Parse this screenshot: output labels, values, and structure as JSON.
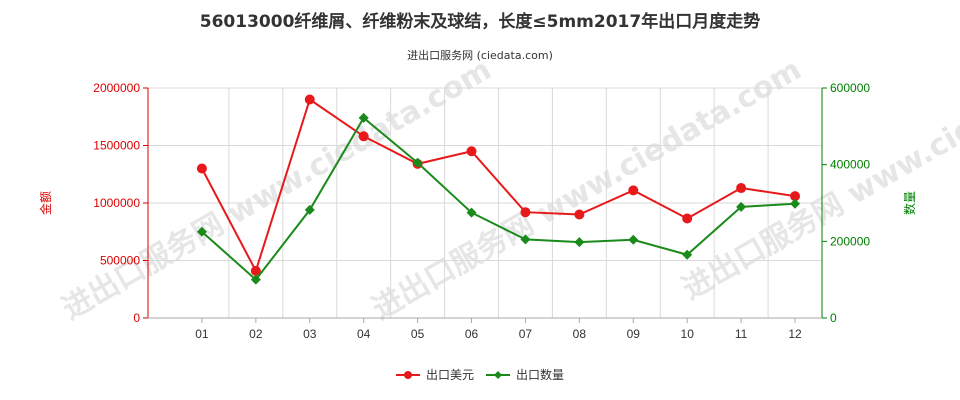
{
  "chart_data": {
    "type": "line",
    "title": "56013000纤维屑、纤维粉末及球结，长度≤5mm2017年出口月度走势",
    "subtitle": "进出口服务网 (ciedata.com)",
    "watermark": "进出口服务网 www.ciedata.com",
    "categories": [
      "01",
      "02",
      "03",
      "04",
      "05",
      "06",
      "07",
      "08",
      "09",
      "10",
      "11",
      "12"
    ],
    "y_left": {
      "label": "金额",
      "min": 0,
      "max": 2000000,
      "ticks": [
        0,
        500000,
        1000000,
        1500000,
        2000000
      ],
      "color": "#dd0000"
    },
    "y_right": {
      "label": "数量",
      "min": 0,
      "max": 600000,
      "ticks": [
        0,
        200000,
        400000,
        600000
      ],
      "color": "#008000"
    },
    "series": [
      {
        "name": "出口美元",
        "axis": "left",
        "color": "#e8191b",
        "values": [
          1300000,
          410000,
          1900000,
          1580000,
          1340000,
          1450000,
          920000,
          900000,
          1110000,
          865000,
          1130000,
          1060000
        ]
      },
      {
        "name": "出口数量",
        "axis": "right",
        "color": "#1a8a1a",
        "values": [
          225000,
          100000,
          282000,
          522000,
          405000,
          275000,
          205000,
          198000,
          204000,
          165000,
          290000,
          298000
        ]
      }
    ],
    "grid": true,
    "legend_position": "bottom-center"
  }
}
